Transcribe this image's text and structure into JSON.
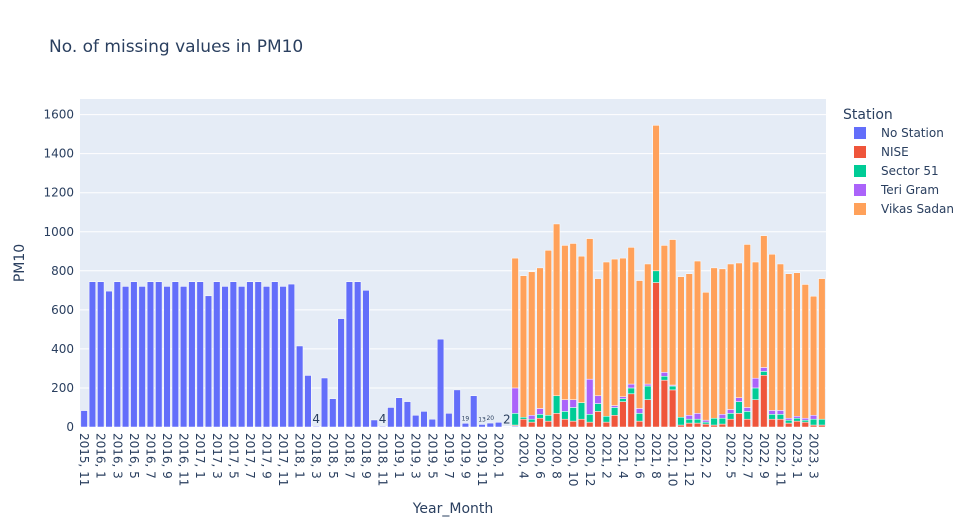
{
  "chart_data": {
    "type": "bar",
    "barmode": "stack",
    "title": "No. of missing values in PM10",
    "xlabel": "Year_Month",
    "ylabel": "PM10",
    "ylim": [
      0,
      1680
    ],
    "yticks": [
      0,
      200,
      400,
      600,
      800,
      1000,
      1200,
      1400,
      1600
    ],
    "grid": true,
    "legend": {
      "title": "Station",
      "position": "right"
    },
    "categories": [
      "2015, 11",
      "2015, 12",
      "2016, 1",
      "2016, 2",
      "2016, 3",
      "2016, 4",
      "2016, 5",
      "2016, 6",
      "2016, 7",
      "2016, 8",
      "2016, 9",
      "2016, 10",
      "2016, 11",
      "2016, 12",
      "2017, 1",
      "2017, 2",
      "2017, 3",
      "2017, 4",
      "2017, 5",
      "2017, 6",
      "2017, 7",
      "2017, 8",
      "2017, 9",
      "2017, 10",
      "2017, 11",
      "2017, 12",
      "2018, 1",
      "2018, 2",
      "2018, 3",
      "2018, 4",
      "2018, 5",
      "2018, 6",
      "2018, 7",
      "2018, 8",
      "2018, 9",
      "2018, 10",
      "2018, 11",
      "2018, 12",
      "2019, 1",
      "2019, 2",
      "2019, 3",
      "2019, 4",
      "2019, 5",
      "2019, 6",
      "2019, 7",
      "2019, 8",
      "2019, 9",
      "2019, 10",
      "2019, 11",
      "2019, 12",
      "2020, 1",
      "2020, 2",
      "2020, 3",
      "2020, 4",
      "2020, 5",
      "2020, 6",
      "2020, 7",
      "2020, 8",
      "2020, 9",
      "2020, 10",
      "2020, 11",
      "2020, 12",
      "2021, 1",
      "2021, 2",
      "2021, 3",
      "2021, 4",
      "2021, 5",
      "2021, 6",
      "2021, 7",
      "2021, 8",
      "2021, 9",
      "2021, 10",
      "2021, 11",
      "2021, 12",
      "2022, 1",
      "2022, 2",
      "2022, 3",
      "2022, 4",
      "2022, 5",
      "2022, 6",
      "2022, 7",
      "2022, 8",
      "2022, 9",
      "2022, 10",
      "2022, 11",
      "2022, 12",
      "2023, 1",
      "2023, 2",
      "2023, 3",
      "2023, 4"
    ],
    "tick_labels_shown": [
      "2015, 11",
      "2016, 1",
      "2016, 3",
      "2016, 5",
      "2016, 7",
      "2016, 9",
      "2016, 11",
      "2017, 1",
      "2017, 3",
      "2017, 5",
      "2017, 7",
      "2017, 9",
      "2017, 11",
      "2018, 1",
      "2018, 3",
      "2018, 5",
      "2018, 7",
      "2018, 9",
      "2018, 11",
      "2019, 1",
      "2019, 3",
      "2019, 5",
      "2019, 7",
      "2019, 9",
      "2019, 11",
      "2020, 1",
      "2020, 4",
      "2020, 6",
      "2020, 8",
      "2020, 10",
      "2020, 12",
      "2021, 2",
      "2021, 4",
      "2021, 6",
      "2021, 8",
      "2021, 10",
      "2021, 12",
      "2022, 2",
      "2022, 5",
      "2022, 7",
      "2022, 9",
      "2022, 11",
      "2023, 1",
      "2023, 3"
    ],
    "series": [
      {
        "name": "No Station",
        "color": "#636efa",
        "values": [
          84,
          744,
          744,
          696,
          744,
          720,
          744,
          720,
          744,
          744,
          720,
          744,
          720,
          744,
          744,
          672,
          744,
          720,
          744,
          720,
          744,
          744,
          720,
          744,
          720,
          732,
          415,
          264,
          4,
          251,
          145,
          555,
          744,
          744,
          700,
          36,
          4,
          100,
          150,
          130,
          60,
          80,
          40,
          450,
          70,
          190,
          19,
          160,
          13,
          20,
          24,
          2,
          5,
          0,
          0,
          0,
          0,
          0,
          0,
          0,
          0,
          0,
          0,
          0,
          0,
          0,
          0,
          0,
          0,
          0,
          0,
          0,
          0,
          0,
          0,
          0,
          0,
          0,
          0,
          0,
          0,
          0,
          0,
          0,
          0,
          0,
          0,
          0,
          0,
          0
        ]
      },
      {
        "name": "NISE",
        "color": "#ef553b",
        "values": [
          0,
          0,
          0,
          0,
          0,
          0,
          0,
          0,
          0,
          0,
          0,
          0,
          0,
          0,
          0,
          0,
          0,
          0,
          0,
          0,
          0,
          0,
          0,
          0,
          0,
          0,
          0,
          0,
          0,
          0,
          0,
          0,
          0,
          0,
          0,
          0,
          0,
          0,
          0,
          0,
          0,
          0,
          0,
          0,
          0,
          0,
          0,
          0,
          0,
          0,
          0,
          0,
          5,
          40,
          25,
          45,
          30,
          70,
          40,
          30,
          40,
          25,
          80,
          25,
          60,
          130,
          170,
          30,
          140,
          740,
          240,
          190,
          10,
          20,
          20,
          15,
          10,
          15,
          40,
          70,
          40,
          140,
          265,
          40,
          40,
          20,
          30,
          25,
          10,
          10
        ]
      },
      {
        "name": "Sector 51",
        "color": "#00cc96",
        "values": [
          0,
          0,
          0,
          0,
          0,
          0,
          0,
          0,
          0,
          0,
          0,
          0,
          0,
          0,
          0,
          0,
          0,
          0,
          0,
          0,
          0,
          0,
          0,
          0,
          0,
          0,
          0,
          0,
          0,
          0,
          0,
          0,
          0,
          0,
          0,
          0,
          0,
          0,
          0,
          0,
          0,
          0,
          0,
          0,
          0,
          0,
          0,
          0,
          0,
          0,
          0,
          0,
          60,
          10,
          15,
          20,
          30,
          90,
          40,
          70,
          85,
          40,
          40,
          30,
          40,
          15,
          30,
          40,
          70,
          60,
          20,
          20,
          40,
          20,
          20,
          10,
          35,
          30,
          30,
          60,
          40,
          60,
          20,
          25,
          25,
          15,
          15,
          10,
          30,
          30
        ]
      },
      {
        "name": "Teri Gram",
        "color": "#ab63fa",
        "values": [
          0,
          0,
          0,
          0,
          0,
          0,
          0,
          0,
          0,
          0,
          0,
          0,
          0,
          0,
          0,
          0,
          0,
          0,
          0,
          0,
          0,
          0,
          0,
          0,
          0,
          0,
          0,
          0,
          0,
          0,
          0,
          0,
          0,
          0,
          0,
          0,
          0,
          0,
          0,
          0,
          0,
          0,
          0,
          0,
          0,
          0,
          0,
          0,
          0,
          0,
          0,
          0,
          130,
          0,
          20,
          30,
          0,
          0,
          60,
          40,
          0,
          180,
          40,
          0,
          10,
          10,
          20,
          25,
          10,
          0,
          20,
          5,
          0,
          20,
          30,
          10,
          0,
          20,
          20,
          20,
          20,
          50,
          20,
          20,
          20,
          10,
          10,
          10,
          20,
          0
        ]
      },
      {
        "name": "Vikas Sadan",
        "color": "#ffa15a",
        "values": [
          0,
          0,
          0,
          0,
          0,
          0,
          0,
          0,
          0,
          0,
          0,
          0,
          0,
          0,
          0,
          0,
          0,
          0,
          0,
          0,
          0,
          0,
          0,
          0,
          0,
          0,
          0,
          0,
          0,
          0,
          0,
          0,
          0,
          0,
          0,
          0,
          0,
          0,
          0,
          0,
          0,
          0,
          0,
          0,
          0,
          0,
          0,
          0,
          0,
          0,
          0,
          0,
          665,
          725,
          735,
          720,
          845,
          880,
          790,
          800,
          750,
          720,
          600,
          790,
          750,
          710,
          700,
          655,
          615,
          745,
          650,
          745,
          720,
          725,
          780,
          655,
          770,
          745,
          745,
          690,
          835,
          595,
          675,
          800,
          750,
          740,
          735,
          685,
          610,
          720
        ]
      }
    ],
    "annotations": [
      {
        "category": "2018, 3",
        "text": "4"
      },
      {
        "category": "2018, 11",
        "text": "4"
      },
      {
        "category": "2019, 9",
        "text": "19"
      },
      {
        "category": "2019, 11",
        "text": "13"
      },
      {
        "category": "2019, 12",
        "text": "20"
      },
      {
        "category": "2020, 2",
        "text": "2"
      }
    ]
  }
}
